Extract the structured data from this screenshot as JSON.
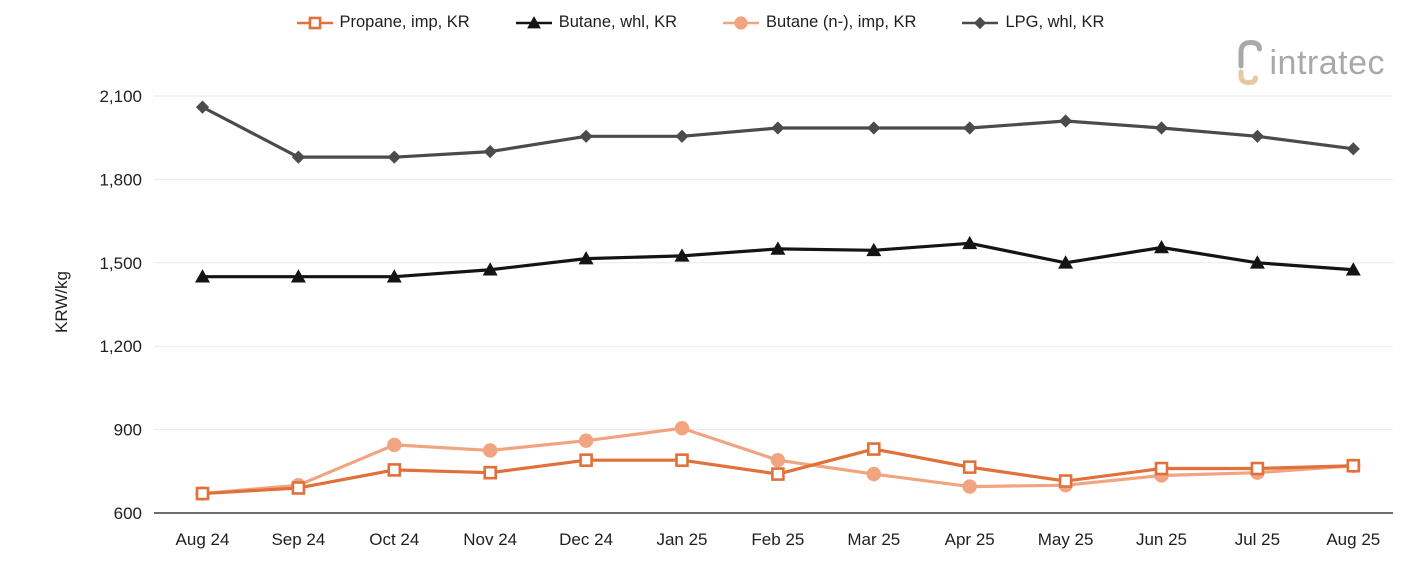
{
  "logo": {
    "text": "intratec"
  },
  "colors": {
    "propane_orange": "#e0713a",
    "butane_black": "#141414",
    "nbutane_peach": "#f2a480",
    "lpg_gray": "#4b4b4d",
    "gridline": "#e9e9e9",
    "axis_line": "#6f6f6f",
    "text": "#1f1f1f",
    "logo_gray": "#a9a9a9",
    "logo_tan": "#e6c8a2"
  },
  "chart_data": {
    "type": "line",
    "title": "",
    "xlabel": "",
    "ylabel": "KRW/kg",
    "ylim": [
      600,
      2100
    ],
    "ytick_interval": 300,
    "ytick_labels": [
      "600",
      "900",
      "1,200",
      "1,500",
      "1,800",
      "2,100"
    ],
    "grid": true,
    "legend_position": "top-center",
    "categories": [
      "Aug 24",
      "Sep 24",
      "Oct 24",
      "Nov 24",
      "Dec 24",
      "Jan 25",
      "Feb 25",
      "Mar 25",
      "Apr 25",
      "May 25",
      "Jun 25",
      "Jul 25",
      "Aug 25"
    ],
    "series": [
      {
        "name": "Propane, imp, KR",
        "marker": "open-square",
        "color": "#e0713a",
        "values": [
          670,
          690,
          755,
          745,
          790,
          790,
          740,
          830,
          765,
          715,
          760,
          760,
          770
        ]
      },
      {
        "name": "Butane, whl, KR",
        "marker": "triangle",
        "color": "#141414",
        "values": [
          1450,
          1450,
          1450,
          1475,
          1515,
          1525,
          1550,
          1545,
          1570,
          1500,
          1555,
          1500,
          1475
        ]
      },
      {
        "name": "Butane (n-), imp, KR",
        "marker": "circle",
        "color": "#f2a480",
        "values": [
          670,
          700,
          845,
          825,
          860,
          905,
          790,
          740,
          695,
          700,
          735,
          745,
          770
        ]
      },
      {
        "name": "LPG, whl, KR",
        "marker": "diamond",
        "color": "#4b4b4d",
        "values": [
          2060,
          1880,
          1880,
          1900,
          1955,
          1955,
          1985,
          1985,
          1985,
          2010,
          1985,
          1955,
          1910
        ]
      }
    ]
  }
}
